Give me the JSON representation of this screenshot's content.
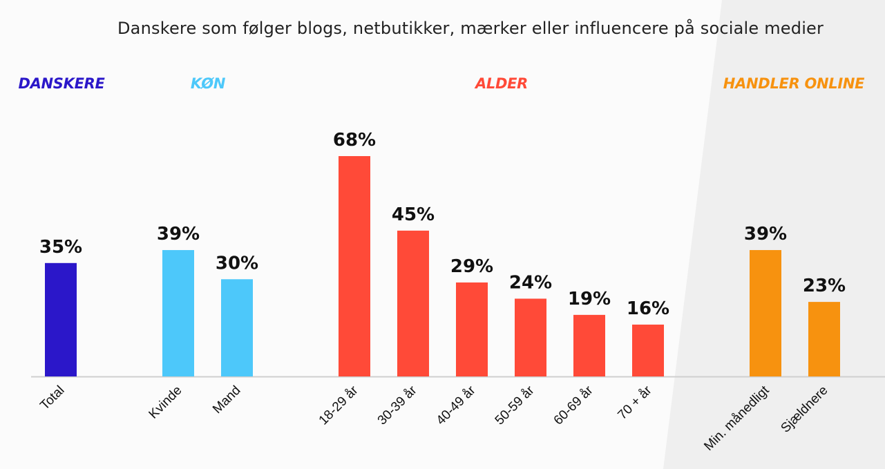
{
  "chart_data": {
    "type": "bar",
    "title": "Danskere som følger blogs, netbutikker, mærker eller influencere på sociale medier",
    "value_suffix": "%",
    "ylim": [
      0,
      68
    ],
    "groups": [
      {
        "label": "DANSKERE",
        "color": "#2b17c9",
        "categories": [
          "Total"
        ],
        "values": [
          35
        ]
      },
      {
        "label": "KØN",
        "color": "#4dc8fa",
        "categories": [
          "Kvinde",
          "Mand"
        ],
        "values": [
          39,
          30
        ]
      },
      {
        "label": "ALDER",
        "color": "#ff4a38",
        "categories": [
          "18-29 år",
          "30-39 år",
          "40-49 år",
          "50-59 år",
          "60-69 år",
          "70 + år"
        ],
        "values": [
          68,
          45,
          29,
          24,
          19,
          16
        ]
      },
      {
        "label": "HANDLER ONLINE",
        "color": "#f7920f",
        "categories": [
          "Min. månedligt",
          "Sjældnere"
        ],
        "values": [
          39,
          23
        ]
      }
    ],
    "grid": false,
    "legend": "none"
  },
  "colors": {
    "axis": "#cfcfcf",
    "shade": "#eeeeee",
    "label_danskere": "#2b17c9",
    "label_kon": "#4dc8fa",
    "label_alder": "#ff4a38",
    "label_handler": "#f7920f"
  }
}
